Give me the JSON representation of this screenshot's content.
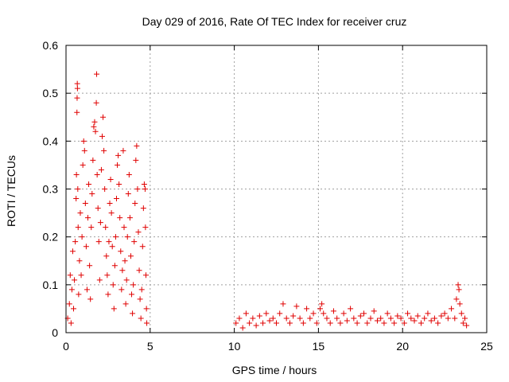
{
  "chart_data": {
    "type": "scatter",
    "title": "Day 029 of 2016, Rate Of TEC Index for receiver cruz",
    "xlabel": "GPS time / hours",
    "ylabel": "ROTI / TECUs",
    "xlim": [
      0,
      25
    ],
    "ylim": [
      0,
      0.6
    ],
    "grid": true,
    "xticks": [
      0,
      5,
      10,
      15,
      20,
      25
    ],
    "xtick_labels": [
      "0",
      "5",
      "10",
      "15",
      "20",
      "25"
    ],
    "yticks": [
      0,
      0.1,
      0.2,
      0.3,
      0.4,
      0.5,
      0.6
    ],
    "ytick_labels": [
      "0",
      "0.1",
      "0.2",
      "0.3",
      "0.4",
      "0.5",
      "0.6"
    ],
    "marker": "+",
    "series": [
      {
        "name": "ROTI",
        "color": "#e00000",
        "points": [
          [
            0.1,
            0.03
          ],
          [
            0.2,
            0.06
          ],
          [
            0.25,
            0.12
          ],
          [
            0.3,
            0.02
          ],
          [
            0.35,
            0.09
          ],
          [
            0.4,
            0.17
          ],
          [
            0.45,
            0.05
          ],
          [
            0.5,
            0.11
          ],
          [
            0.55,
            0.19
          ],
          [
            0.6,
            0.28
          ],
          [
            0.62,
            0.33
          ],
          [
            0.65,
            0.46
          ],
          [
            0.66,
            0.49
          ],
          [
            0.67,
            0.52
          ],
          [
            0.68,
            0.51
          ],
          [
            0.7,
            0.3
          ],
          [
            0.72,
            0.22
          ],
          [
            0.75,
            0.08
          ],
          [
            0.8,
            0.15
          ],
          [
            0.85,
            0.25
          ],
          [
            0.9,
            0.12
          ],
          [
            0.95,
            0.2
          ],
          [
            1.0,
            0.35
          ],
          [
            1.05,
            0.4
          ],
          [
            1.1,
            0.38
          ],
          [
            1.15,
            0.27
          ],
          [
            1.2,
            0.18
          ],
          [
            1.25,
            0.09
          ],
          [
            1.3,
            0.24
          ],
          [
            1.35,
            0.31
          ],
          [
            1.4,
            0.14
          ],
          [
            1.45,
            0.07
          ],
          [
            1.5,
            0.22
          ],
          [
            1.55,
            0.29
          ],
          [
            1.6,
            0.36
          ],
          [
            1.65,
            0.43
          ],
          [
            1.7,
            0.44
          ],
          [
            1.75,
            0.42
          ],
          [
            1.8,
            0.48
          ],
          [
            1.82,
            0.54
          ],
          [
            1.85,
            0.33
          ],
          [
            1.9,
            0.26
          ],
          [
            1.95,
            0.19
          ],
          [
            2.0,
            0.11
          ],
          [
            2.05,
            0.23
          ],
          [
            2.1,
            0.34
          ],
          [
            2.15,
            0.41
          ],
          [
            2.2,
            0.45
          ],
          [
            2.25,
            0.38
          ],
          [
            2.3,
            0.3
          ],
          [
            2.35,
            0.22
          ],
          [
            2.4,
            0.16
          ],
          [
            2.45,
            0.12
          ],
          [
            2.5,
            0.08
          ],
          [
            2.55,
            0.19
          ],
          [
            2.6,
            0.27
          ],
          [
            2.65,
            0.32
          ],
          [
            2.7,
            0.25
          ],
          [
            2.75,
            0.18
          ],
          [
            2.8,
            0.1
          ],
          [
            2.85,
            0.05
          ],
          [
            2.9,
            0.14
          ],
          [
            2.95,
            0.2
          ],
          [
            3.0,
            0.28
          ],
          [
            3.05,
            0.35
          ],
          [
            3.1,
            0.37
          ],
          [
            3.15,
            0.31
          ],
          [
            3.2,
            0.24
          ],
          [
            3.25,
            0.17
          ],
          [
            3.3,
            0.09
          ],
          [
            3.35,
            0.13
          ],
          [
            3.4,
            0.38
          ],
          [
            3.45,
            0.22
          ],
          [
            3.5,
            0.15
          ],
          [
            3.55,
            0.06
          ],
          [
            3.6,
            0.11
          ],
          [
            3.65,
            0.2
          ],
          [
            3.7,
            0.29
          ],
          [
            3.75,
            0.33
          ],
          [
            3.8,
            0.24
          ],
          [
            3.85,
            0.16
          ],
          [
            3.9,
            0.08
          ],
          [
            3.95,
            0.04
          ],
          [
            4.0,
            0.1
          ],
          [
            4.05,
            0.19
          ],
          [
            4.1,
            0.27
          ],
          [
            4.15,
            0.36
          ],
          [
            4.2,
            0.39
          ],
          [
            4.25,
            0.3
          ],
          [
            4.3,
            0.21
          ],
          [
            4.35,
            0.13
          ],
          [
            4.4,
            0.07
          ],
          [
            4.45,
            0.03
          ],
          [
            4.5,
            0.09
          ],
          [
            4.55,
            0.18
          ],
          [
            4.6,
            0.26
          ],
          [
            4.65,
            0.31
          ],
          [
            4.7,
            0.3
          ],
          [
            4.72,
            0.22
          ],
          [
            4.75,
            0.12
          ],
          [
            4.78,
            0.05
          ],
          [
            4.8,
            0.02
          ],
          [
            10.1,
            0.02
          ],
          [
            10.3,
            0.03
          ],
          [
            10.5,
            0.01
          ],
          [
            10.7,
            0.04
          ],
          [
            10.9,
            0.02
          ],
          [
            11.1,
            0.03
          ],
          [
            11.3,
            0.015
          ],
          [
            11.5,
            0.035
          ],
          [
            11.7,
            0.02
          ],
          [
            11.9,
            0.04
          ],
          [
            12.1,
            0.025
          ],
          [
            12.3,
            0.03
          ],
          [
            12.5,
            0.02
          ],
          [
            12.7,
            0.04
          ],
          [
            12.9,
            0.06
          ],
          [
            13.1,
            0.03
          ],
          [
            13.3,
            0.02
          ],
          [
            13.5,
            0.035
          ],
          [
            13.7,
            0.055
          ],
          [
            13.9,
            0.03
          ],
          [
            14.1,
            0.02
          ],
          [
            14.3,
            0.05
          ],
          [
            14.5,
            0.03
          ],
          [
            14.7,
            0.04
          ],
          [
            14.9,
            0.02
          ],
          [
            15.1,
            0.05
          ],
          [
            15.2,
            0.06
          ],
          [
            15.3,
            0.04
          ],
          [
            15.5,
            0.03
          ],
          [
            15.7,
            0.02
          ],
          [
            15.9,
            0.045
          ],
          [
            16.1,
            0.03
          ],
          [
            16.3,
            0.02
          ],
          [
            16.5,
            0.04
          ],
          [
            16.7,
            0.025
          ],
          [
            16.9,
            0.05
          ],
          [
            17.1,
            0.03
          ],
          [
            17.3,
            0.02
          ],
          [
            17.5,
            0.035
          ],
          [
            17.7,
            0.04
          ],
          [
            17.9,
            0.02
          ],
          [
            18.1,
            0.03
          ],
          [
            18.3,
            0.045
          ],
          [
            18.5,
            0.025
          ],
          [
            18.7,
            0.03
          ],
          [
            18.9,
            0.02
          ],
          [
            19.1,
            0.04
          ],
          [
            19.3,
            0.03
          ],
          [
            19.5,
            0.02
          ],
          [
            19.7,
            0.035
          ],
          [
            19.9,
            0.03
          ],
          [
            20.1,
            0.02
          ],
          [
            20.3,
            0.04
          ],
          [
            20.5,
            0.03
          ],
          [
            20.7,
            0.025
          ],
          [
            20.9,
            0.035
          ],
          [
            21.1,
            0.02
          ],
          [
            21.3,
            0.03
          ],
          [
            21.5,
            0.04
          ],
          [
            21.7,
            0.025
          ],
          [
            21.9,
            0.03
          ],
          [
            22.1,
            0.02
          ],
          [
            22.3,
            0.035
          ],
          [
            22.5,
            0.04
          ],
          [
            22.7,
            0.03
          ],
          [
            22.9,
            0.05
          ],
          [
            23.1,
            0.03
          ],
          [
            23.2,
            0.07
          ],
          [
            23.3,
            0.1
          ],
          [
            23.35,
            0.09
          ],
          [
            23.4,
            0.06
          ],
          [
            23.5,
            0.04
          ],
          [
            23.6,
            0.02
          ],
          [
            23.7,
            0.03
          ],
          [
            23.8,
            0.015
          ]
        ]
      }
    ]
  }
}
